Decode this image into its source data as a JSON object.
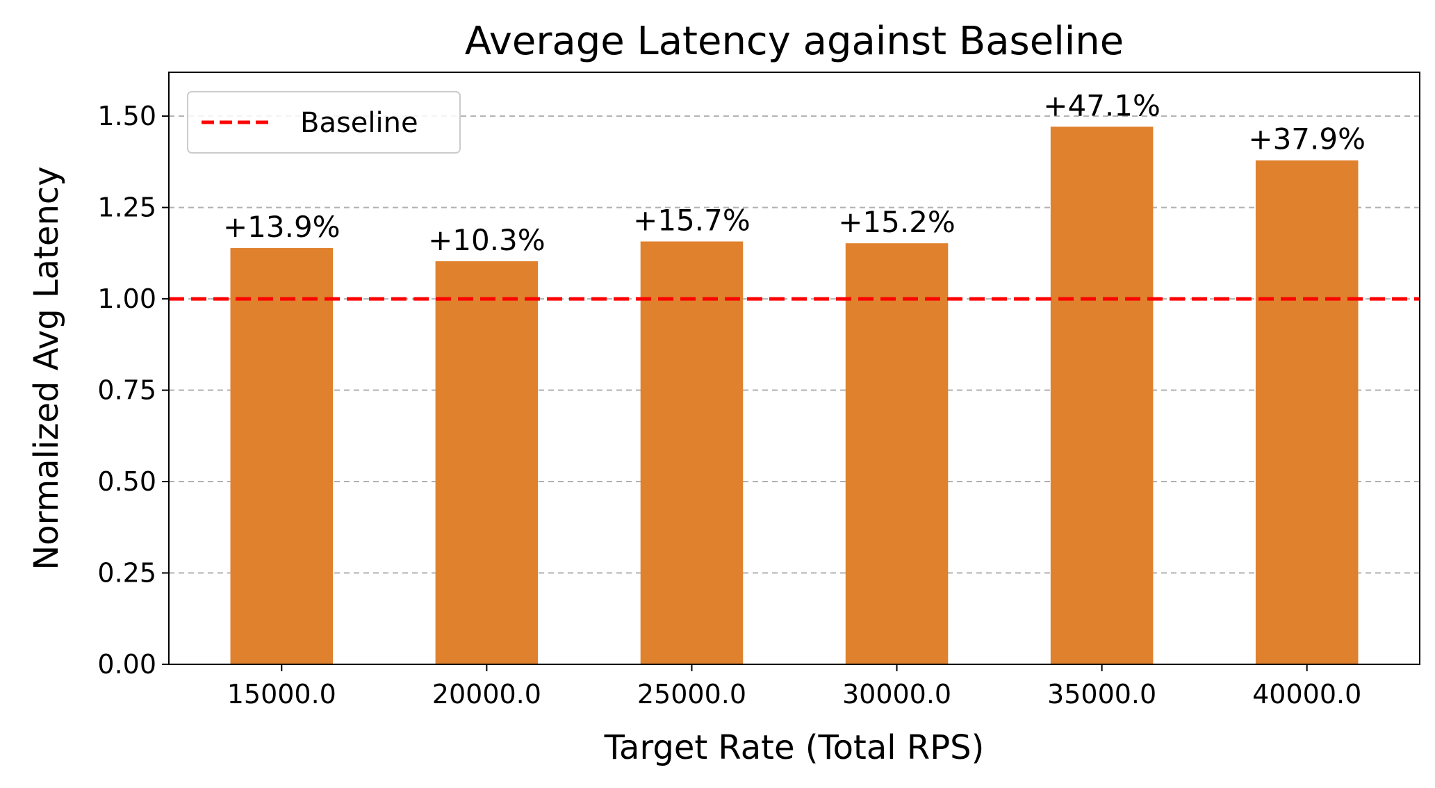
{
  "chart_data": {
    "type": "bar",
    "title": "Average Latency against Baseline",
    "xlabel": "Target Rate (Total RPS)",
    "ylabel": "Normalized Avg Latency",
    "categories": [
      "15000.0",
      "20000.0",
      "25000.0",
      "30000.0",
      "35000.0",
      "40000.0"
    ],
    "values": [
      1.139,
      1.103,
      1.157,
      1.152,
      1.471,
      1.379
    ],
    "data_labels": [
      "+13.9%",
      "+10.3%",
      "+15.7%",
      "+15.2%",
      "+47.1%",
      "+37.9%"
    ],
    "ylim": [
      0,
      1.62
    ],
    "yticks": [
      0,
      0.25,
      0.5,
      0.75,
      1.0,
      1.25,
      1.5
    ],
    "ytick_labels": [
      "0.00",
      "0.25",
      "0.50",
      "0.75",
      "1.00",
      "1.25",
      "1.50"
    ],
    "baseline": {
      "value": 1.0,
      "name": "Baseline",
      "color": "#ff0000"
    },
    "bar_color": "#e0812e",
    "grid": {
      "axis": "y",
      "style": "dashed",
      "color": "#b0b0b0"
    },
    "legend": {
      "placement": "top-left",
      "entries": [
        "Baseline"
      ]
    }
  }
}
